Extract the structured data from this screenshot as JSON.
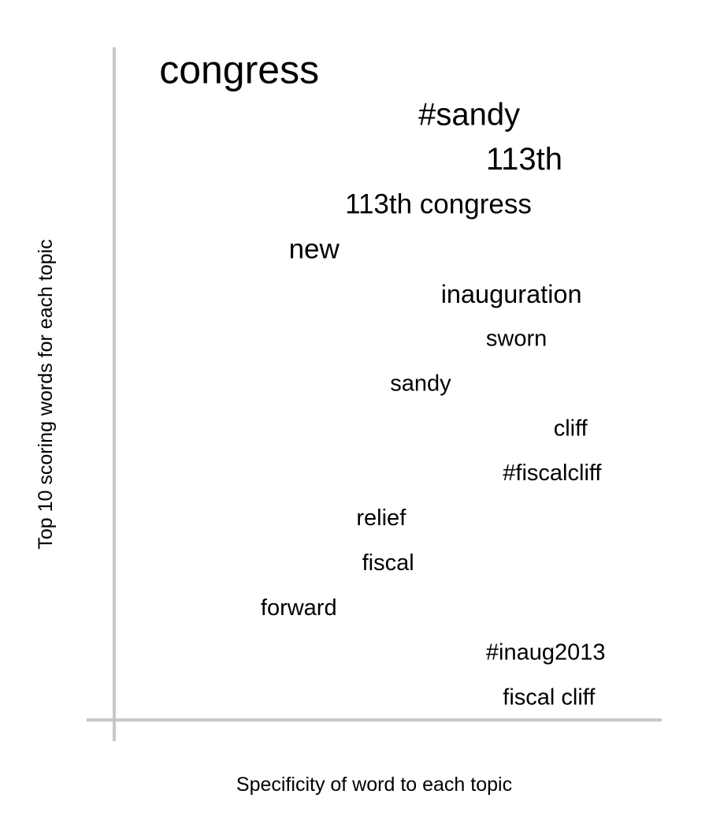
{
  "chart_data": {
    "type": "scatter",
    "xlabel": "Specificity of word to each topic",
    "ylabel": "Top 10 scoring words for each topic",
    "xlim": [
      0,
      1
    ],
    "ylim": [
      0,
      15
    ],
    "grid": false,
    "axis_color": "#c8c8c8",
    "text_color": "#000000",
    "points": [
      {
        "word": "congress",
        "x": 0.08,
        "y": 14.5,
        "size": 1.0
      },
      {
        "word": "#sandy",
        "x": 0.54,
        "y": 13.5,
        "size": 0.8
      },
      {
        "word": "113th",
        "x": 0.66,
        "y": 12.5,
        "size": 0.8
      },
      {
        "word": "113th congress",
        "x": 0.41,
        "y": 11.5,
        "size": 0.7
      },
      {
        "word": "new",
        "x": 0.31,
        "y": 10.5,
        "size": 0.7
      },
      {
        "word": "inauguration",
        "x": 0.58,
        "y": 9.5,
        "size": 0.65
      },
      {
        "word": "sworn",
        "x": 0.66,
        "y": 8.5,
        "size": 0.58
      },
      {
        "word": "sandy",
        "x": 0.49,
        "y": 7.5,
        "size": 0.58
      },
      {
        "word": "cliff",
        "x": 0.78,
        "y": 6.5,
        "size": 0.58
      },
      {
        "word": "#fiscalcliff",
        "x": 0.69,
        "y": 5.5,
        "size": 0.58
      },
      {
        "word": "relief",
        "x": 0.43,
        "y": 4.5,
        "size": 0.58
      },
      {
        "word": "fiscal",
        "x": 0.44,
        "y": 3.5,
        "size": 0.58
      },
      {
        "word": "forward",
        "x": 0.26,
        "y": 2.5,
        "size": 0.58
      },
      {
        "word": "#inaug2013",
        "x": 0.66,
        "y": 1.5,
        "size": 0.58
      },
      {
        "word": "fiscal cliff",
        "x": 0.69,
        "y": 0.5,
        "size": 0.58
      }
    ]
  }
}
